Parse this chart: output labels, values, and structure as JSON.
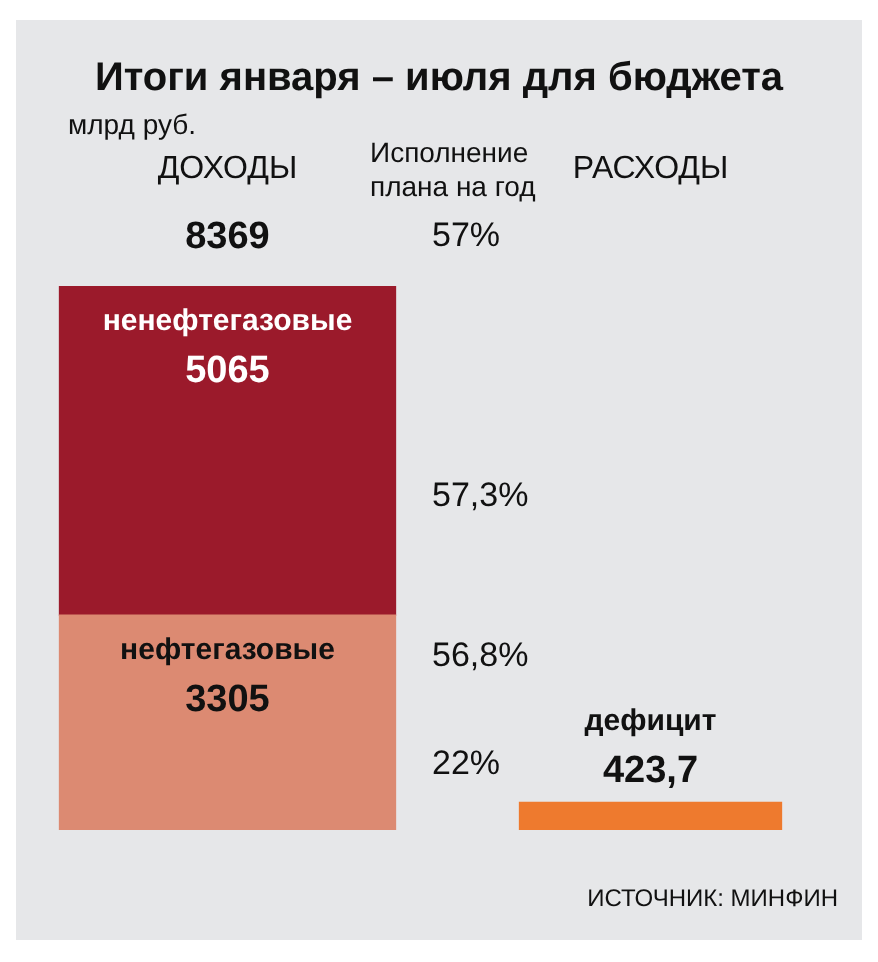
{
  "chart_data": {
    "type": "bar",
    "title": "Итоги января – июля для бюджета",
    "subtitle": "млрд руб.",
    "categories": [
      "ДОХОДЫ",
      "РАСХОДЫ"
    ],
    "stacked": true,
    "series": [
      {
        "name": "нефтегазовые",
        "color": "#dc8a72",
        "values": [
          3305,
          null
        ],
        "value_labels": [
          "3305",
          null
        ]
      },
      {
        "name": "ненефтегазовые",
        "color": "#9b1a2b",
        "values": [
          5065,
          null
        ],
        "value_labels": [
          "5065",
          null
        ]
      },
      {
        "name": "дефицит",
        "color": "#ee7a2e",
        "values": [
          null,
          423.7
        ],
        "value_labels": [
          null,
          "423,7"
        ]
      }
    ],
    "totals": [
      "8369",
      null
    ],
    "annotations": [
      "Исполнение\nплана на год",
      "57%",
      "57,3%",
      "56,8%",
      "22%",
      "ИСТОЧНИК: МИНФИН"
    ],
    "legend": false
  }
}
